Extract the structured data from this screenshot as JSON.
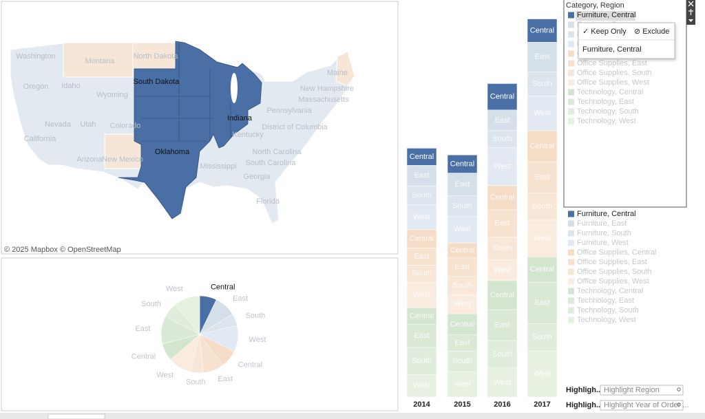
{
  "map": {
    "states": [
      "Washington",
      "Oregon",
      "Idaho",
      "Montana",
      "Wyoming",
      "Nevada",
      "Utah",
      "Colorado",
      "California",
      "Arizona",
      "New Mexico",
      "North Dakota",
      "South Dakota",
      "Oklahoma",
      "Indiana",
      "Pennsylvania",
      "New Hampshire",
      "Massachusetts",
      "District of Columbia",
      "Kentucky",
      "North Carolina",
      "South Carolina",
      "Mississippi",
      "Georgia",
      "Florida",
      "Maine"
    ],
    "attribution": "© 2025 Mapbox © OpenStreetMap"
  },
  "chart_data": [
    {
      "type": "pie",
      "labels": [
        "Central",
        "East",
        "South",
        "West",
        "Central",
        "East",
        "South",
        "West",
        "Central",
        "East",
        "South",
        "West"
      ],
      "values": [
        163797,
        208291,
        117299,
        252613,
        167026,
        205516,
        125651,
        220853,
        170416,
        264974,
        148772,
        251992
      ]
    },
    {
      "type": "bar",
      "categories": [
        "2014",
        "2015",
        "2016",
        "2017"
      ],
      "ylim": [
        0,
        745
      ],
      "series": [
        {
          "name": "Furniture, Central",
          "color": "#4a6fa5",
          "values": [
            33,
            35,
            51,
            45
          ]
        },
        {
          "name": "Furniture, East",
          "color": "#d5dfea",
          "values": [
            40,
            44,
            40,
            57
          ]
        },
        {
          "name": "Furniture, South",
          "color": "#dce4ee",
          "values": [
            36,
            40,
            33,
            47
          ]
        },
        {
          "name": "Furniture, West",
          "color": "#e3e9f2",
          "values": [
            48,
            51,
            73,
            67
          ]
        },
        {
          "name": "Office Supplies, Central",
          "color": "#f5dcc6",
          "values": [
            36,
            29,
            47,
            60
          ]
        },
        {
          "name": "Office Supplies, East",
          "color": "#f7e1cf",
          "values": [
            33,
            36,
            53,
            60
          ]
        },
        {
          "name": "Office Supplies, South",
          "color": "#f8e6d7",
          "values": [
            33,
            35,
            44,
            53
          ]
        },
        {
          "name": "Office Supplies, West",
          "color": "#faebdf",
          "values": [
            49,
            37,
            40,
            71
          ]
        },
        {
          "name": "Technology, Central",
          "color": "#d4e5cf",
          "values": [
            33,
            41,
            56,
            49
          ]
        },
        {
          "name": "Technology, East",
          "color": "#dae9d5",
          "values": [
            44,
            31,
            60,
            80
          ]
        },
        {
          "name": "Technology, South",
          "color": "#e0eddc",
          "values": [
            53,
            40,
            53,
            53
          ]
        },
        {
          "name": "Technology, West",
          "color": "#e6f1e2",
          "values": [
            43,
            49,
            56,
            89
          ]
        }
      ]
    }
  ],
  "legend": {
    "title": "Category, Region"
  },
  "tooltip": {
    "keep_only": "✓ Keep Only",
    "exclude": "⊘ Exclude",
    "item": "Furniture, Central"
  },
  "highlighters": [
    {
      "label": "Highligh..",
      "placeholder": "Highlight Region"
    },
    {
      "label": "Highligh..",
      "placeholder": "Highlight Year of Order ..."
    }
  ]
}
